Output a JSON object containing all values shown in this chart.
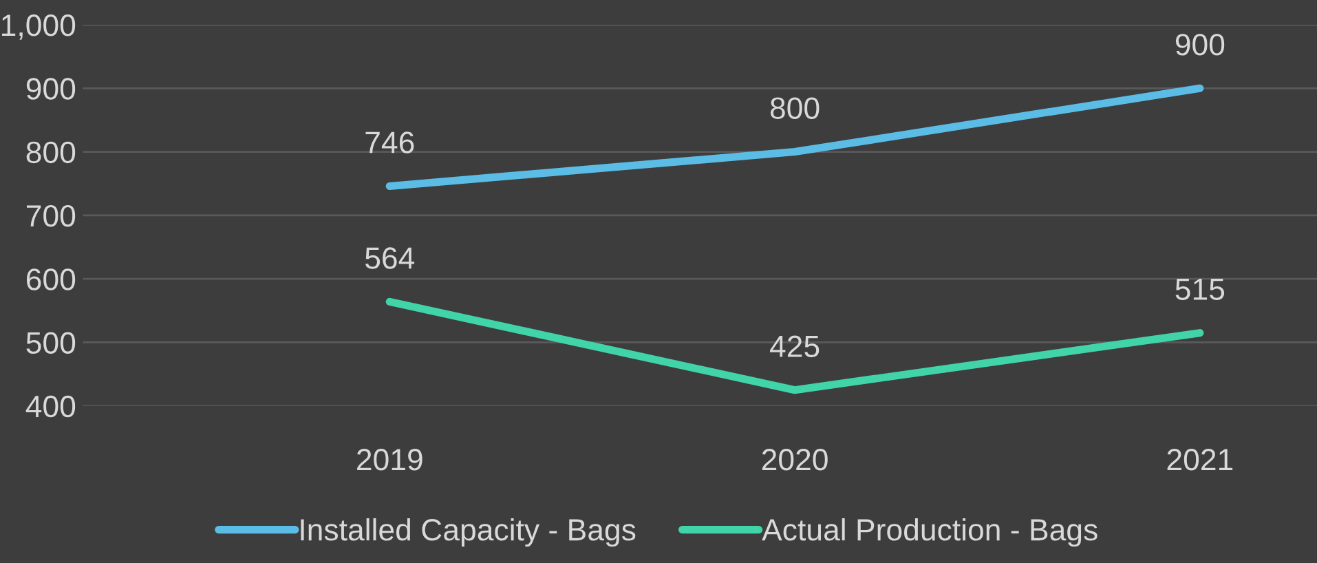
{
  "chart_data": {
    "type": "line",
    "categories": [
      "2019",
      "2020",
      "2021"
    ],
    "series": [
      {
        "name": "Installed Capacity - Bags",
        "color": "#5bbde6",
        "values": [
          746,
          800,
          900
        ]
      },
      {
        "name": "Actual Production - Bags",
        "color": "#40d4a8",
        "values": [
          564,
          425,
          515
        ]
      }
    ],
    "ylim": [
      400,
      1000
    ],
    "yticks": [
      400,
      500,
      600,
      700,
      800,
      900,
      {
        "value": 1000,
        "label": "1,000"
      }
    ],
    "grid": "y",
    "legend": "bottom",
    "data_labels": true,
    "marker": "none",
    "line_style": "solid"
  }
}
